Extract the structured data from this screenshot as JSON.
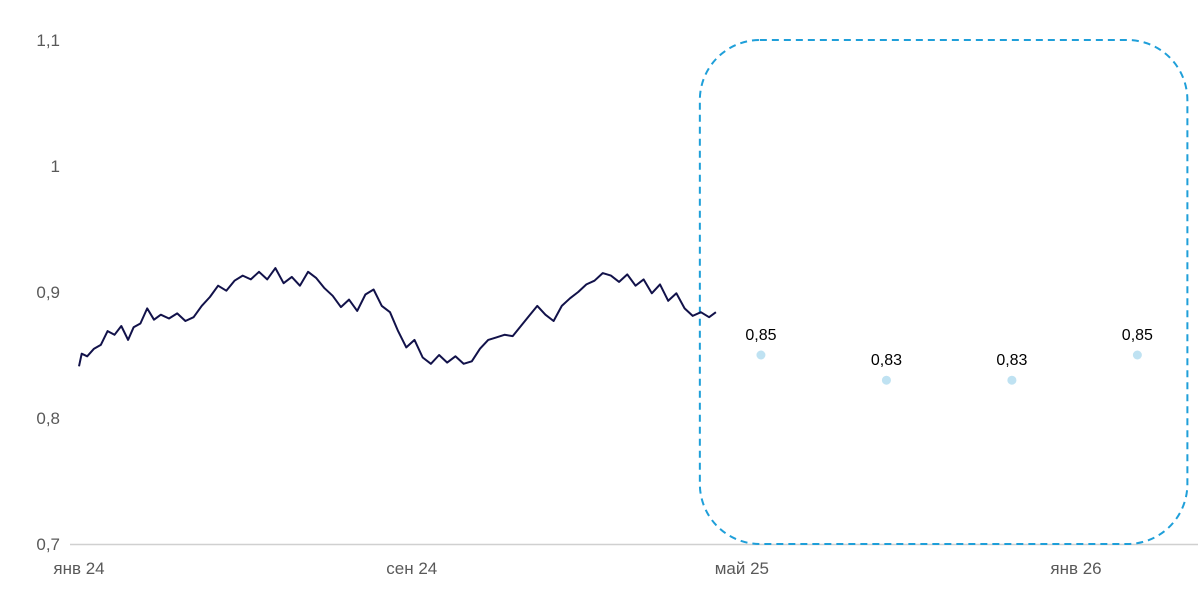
{
  "colors": {
    "line": "#12124a",
    "forecast_point": "#bfe2f2",
    "forecast_box": "#1f9fd9",
    "axis": "#d0d0d0",
    "tick_text": "#595959"
  },
  "chart_data": {
    "type": "line",
    "title": "",
    "xlabel": "",
    "ylabel": "",
    "ylim": [
      0.7,
      1.1
    ],
    "yticks": [
      {
        "value": 0.7,
        "label": "0,7"
      },
      {
        "value": 0.8,
        "label": "0,8"
      },
      {
        "value": 0.9,
        "label": "0,9"
      },
      {
        "value": 1.0,
        "label": "1"
      },
      {
        "value": 1.1,
        "label": "1,1"
      }
    ],
    "xlim": [
      "2024-01-01",
      "2026-04-01"
    ],
    "xticks": [
      {
        "date": "2024-01-01",
        "label": "янв 24"
      },
      {
        "date": "2024-09-01",
        "label": "сен 24"
      },
      {
        "date": "2025-05-01",
        "label": "май 25"
      },
      {
        "date": "2026-01-01",
        "label": "янв 26"
      }
    ],
    "grid": false,
    "series": [
      {
        "kind": "line",
        "points": [
          [
            "2024-01-01",
            0.841
          ],
          [
            "2024-01-03",
            0.851
          ],
          [
            "2024-01-07",
            0.849
          ],
          [
            "2024-01-12",
            0.855
          ],
          [
            "2024-01-17",
            0.858
          ],
          [
            "2024-01-22",
            0.869
          ],
          [
            "2024-01-27",
            0.866
          ],
          [
            "2024-02-01",
            0.873
          ],
          [
            "2024-02-06",
            0.862
          ],
          [
            "2024-02-10",
            0.872
          ],
          [
            "2024-02-15",
            0.875
          ],
          [
            "2024-02-20",
            0.887
          ],
          [
            "2024-02-25",
            0.878
          ],
          [
            "2024-03-01",
            0.882
          ],
          [
            "2024-03-07",
            0.879
          ],
          [
            "2024-03-13",
            0.883
          ],
          [
            "2024-03-19",
            0.877
          ],
          [
            "2024-03-25",
            0.88
          ],
          [
            "2024-03-31",
            0.889
          ],
          [
            "2024-04-06",
            0.896
          ],
          [
            "2024-04-12",
            0.905
          ],
          [
            "2024-04-18",
            0.901
          ],
          [
            "2024-04-24",
            0.909
          ],
          [
            "2024-04-30",
            0.913
          ],
          [
            "2024-05-06",
            0.91
          ],
          [
            "2024-05-12",
            0.916
          ],
          [
            "2024-05-18",
            0.91
          ],
          [
            "2024-05-24",
            0.919
          ],
          [
            "2024-05-30",
            0.907
          ],
          [
            "2024-06-05",
            0.912
          ],
          [
            "2024-06-11",
            0.905
          ],
          [
            "2024-06-17",
            0.916
          ],
          [
            "2024-06-23",
            0.911
          ],
          [
            "2024-06-29",
            0.903
          ],
          [
            "2024-07-05",
            0.897
          ],
          [
            "2024-07-11",
            0.888
          ],
          [
            "2024-07-17",
            0.894
          ],
          [
            "2024-07-23",
            0.885
          ],
          [
            "2024-07-29",
            0.898
          ],
          [
            "2024-08-04",
            0.902
          ],
          [
            "2024-08-10",
            0.889
          ],
          [
            "2024-08-16",
            0.884
          ],
          [
            "2024-08-22",
            0.869
          ],
          [
            "2024-08-28",
            0.856
          ],
          [
            "2024-09-03",
            0.862
          ],
          [
            "2024-09-09",
            0.848
          ],
          [
            "2024-09-15",
            0.843
          ],
          [
            "2024-09-21",
            0.85
          ],
          [
            "2024-09-27",
            0.844
          ],
          [
            "2024-10-03",
            0.849
          ],
          [
            "2024-10-09",
            0.843
          ],
          [
            "2024-10-15",
            0.845
          ],
          [
            "2024-10-21",
            0.855
          ],
          [
            "2024-10-27",
            0.862
          ],
          [
            "2024-11-02",
            0.864
          ],
          [
            "2024-11-08",
            0.866
          ],
          [
            "2024-11-14",
            0.865
          ],
          [
            "2024-11-20",
            0.873
          ],
          [
            "2024-11-26",
            0.881
          ],
          [
            "2024-12-02",
            0.889
          ],
          [
            "2024-12-08",
            0.882
          ],
          [
            "2024-12-14",
            0.877
          ],
          [
            "2024-12-20",
            0.889
          ],
          [
            "2024-12-26",
            0.895
          ],
          [
            "2025-01-01",
            0.9
          ],
          [
            "2025-01-07",
            0.906
          ],
          [
            "2025-01-13",
            0.909
          ],
          [
            "2025-01-19",
            0.915
          ],
          [
            "2025-01-25",
            0.913
          ],
          [
            "2025-01-31",
            0.908
          ],
          [
            "2025-02-06",
            0.914
          ],
          [
            "2025-02-12",
            0.905
          ],
          [
            "2025-02-18",
            0.91
          ],
          [
            "2025-02-24",
            0.899
          ],
          [
            "2025-03-02",
            0.906
          ],
          [
            "2025-03-08",
            0.893
          ],
          [
            "2025-03-14",
            0.899
          ],
          [
            "2025-03-20",
            0.887
          ],
          [
            "2025-03-26",
            0.881
          ],
          [
            "2025-04-01",
            0.884
          ],
          [
            "2025-04-07",
            0.88
          ],
          [
            "2025-04-12",
            0.884
          ]
        ]
      },
      {
        "kind": "forecast",
        "points": [
          {
            "date": "2025-05-15",
            "value": 0.85,
            "label": "0,85"
          },
          {
            "date": "2025-08-15",
            "value": 0.83,
            "label": "0,83"
          },
          {
            "date": "2025-11-15",
            "value": 0.83,
            "label": "0,83"
          },
          {
            "date": "2026-02-15",
            "value": 0.85,
            "label": "0,85"
          }
        ]
      }
    ],
    "forecast_region": {
      "from": "2025-05-01",
      "to": "2026-03-31",
      "value_from": 0.7,
      "value_to": 1.1,
      "style": "dashed-rounded-box"
    }
  }
}
